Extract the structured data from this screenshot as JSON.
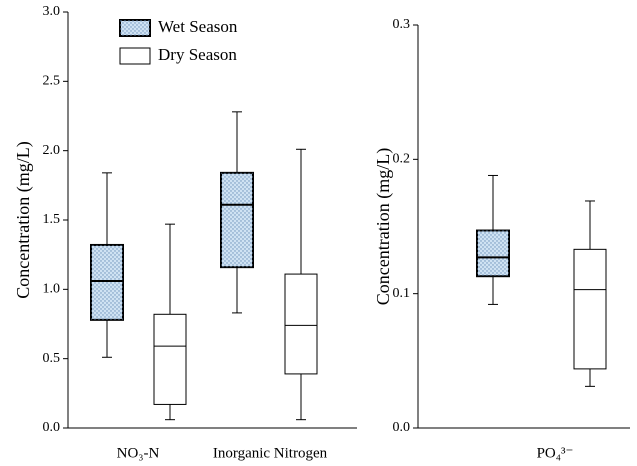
{
  "chart_data": [
    {
      "type": "box",
      "ylabel": "Concentration (mg/L)",
      "categories": [
        "NO₃-N",
        "Inorganic Nitrogen"
      ],
      "ylim": [
        0,
        3.0
      ],
      "yticks": [
        {
          "value": 0,
          "label": "0.0"
        },
        0.5,
        {
          "value": 1,
          "label": "1.0"
        },
        1.5,
        {
          "value": 2,
          "label": "2.0"
        },
        2.5,
        {
          "value": 3,
          "label": "3.0"
        }
      ],
      "legend": "upper left",
      "series": [
        {
          "name": "Wet Season",
          "color": "#cfe2f3",
          "pattern": "dots",
          "values": [
            {
              "min": 0.51,
              "q1": 0.78,
              "median": 1.06,
              "q3": 1.32,
              "max": 1.84
            },
            {
              "min": 0.83,
              "q1": 1.16,
              "median": 1.61,
              "q3": 1.84,
              "max": 2.28
            }
          ]
        },
        {
          "name": "Dry Season",
          "color": "#ffffff",
          "values": [
            {
              "min": 0.06,
              "q1": 0.17,
              "median": 0.59,
              "q3": 0.82,
              "max": 1.47
            },
            {
              "min": 0.06,
              "q1": 0.39,
              "median": 0.74,
              "q3": 1.11,
              "max": 2.01
            }
          ]
        }
      ]
    },
    {
      "type": "box",
      "ylabel": "Concentration (mg/L)",
      "categories": [
        "PO₄³⁻"
      ],
      "ylim": [
        0,
        0.3
      ],
      "yticks": [
        {
          "value": 0,
          "label": "0.0"
        },
        0.1,
        0.2,
        0.3
      ],
      "series": [
        {
          "color": "#cfe2f3",
          "pattern": "dots",
          "values": [
            {
              "min": 0.092,
              "q1": 0.113,
              "median": 0.127,
              "q3": 0.147,
              "max": 0.188
            }
          ]
        },
        {
          "color": "#ffffff",
          "values": [
            {
              "min": 0.031,
              "q1": 0.044,
              "median": 0.103,
              "q3": 0.133,
              "max": 0.169
            }
          ]
        }
      ]
    }
  ]
}
